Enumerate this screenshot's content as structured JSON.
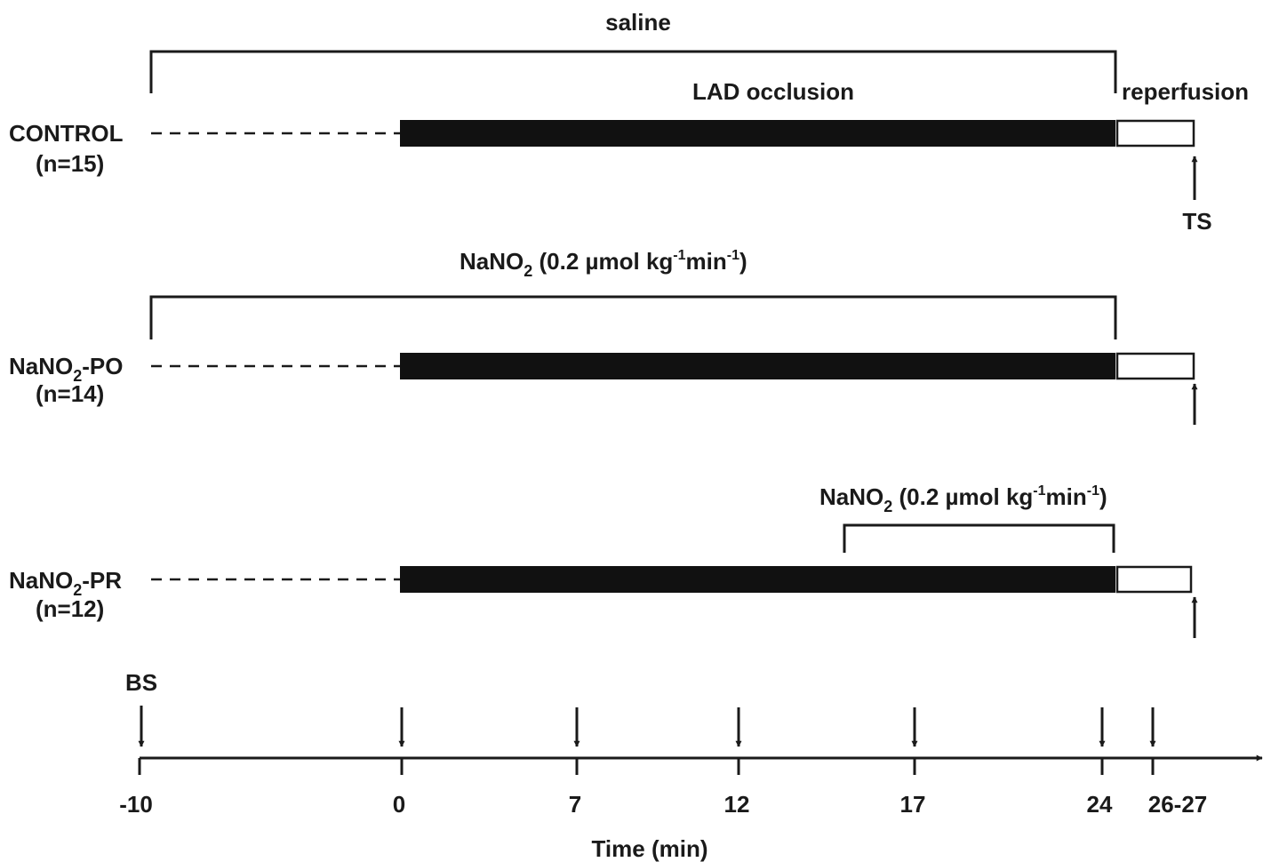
{
  "treatments": {
    "saline": "saline",
    "nitrite_prefix": "NaNO",
    "nitrite_sub": "2",
    "dose_a": " (0.2 µmol kg",
    "dose_sup1": "-1",
    "dose_b": "min",
    "dose_sup2": "-1",
    "dose_c": ")"
  },
  "phases": {
    "occlusion": "LAD occlusion",
    "reperfusion": "reperfusion"
  },
  "groups": [
    {
      "name": "CONTROL",
      "n": "(n=15)"
    },
    {
      "name_prefix": "NaNO",
      "name_sub": "2",
      "name_suffix": "-PO",
      "n": "(n=14)"
    },
    {
      "name_prefix": "NaNO",
      "name_sub": "2",
      "name_suffix": "-PR",
      "n": "(n=12)"
    }
  ],
  "samples": {
    "baseline": "BS",
    "terminal": "TS"
  },
  "axis": {
    "title": "Time (min)",
    "ticks": [
      "-10",
      "0",
      "7",
      "12",
      "17",
      "24",
      "26-27"
    ]
  },
  "colors": {
    "ink": "#1a1a1a",
    "occlusion_fill": "#111111",
    "reperfusion_fill": "#ffffff"
  }
}
